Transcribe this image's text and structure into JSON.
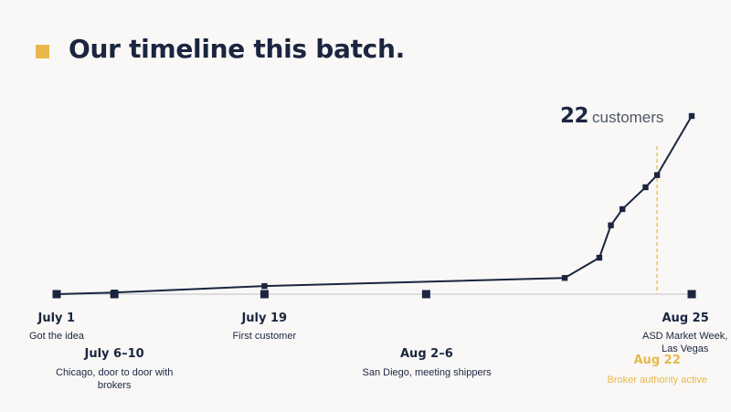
{
  "slide": {
    "title": "Our timeline this batch.",
    "accent_color": "#e8b84c",
    "text_color": "#1b2540"
  },
  "headline": {
    "count": "22",
    "unit": "customers"
  },
  "milestones": [
    {
      "date": "July 1",
      "desc": "Got the idea",
      "day": 1
    },
    {
      "date": "July 6–10",
      "desc": "Chicago, door to door with\nbrokers",
      "day": 6
    },
    {
      "date": "July 19",
      "desc": "First customer",
      "day": 19
    },
    {
      "date": "Aug 2–6",
      "desc": "San Diego, meeting shippers",
      "day": 33
    },
    {
      "date": "Aug 25",
      "desc": "ASD Market Week,\nLas Vegas",
      "day": 56
    },
    {
      "date": "Aug 22",
      "desc": "Broker authority active",
      "day": 53,
      "highlight": true
    }
  ],
  "chart_data": {
    "type": "line",
    "x_axis": "days from July 1",
    "x_range": [
      "July 1",
      "Aug 25"
    ],
    "y_label": "customers",
    "y_range": [
      0,
      22
    ],
    "series": [
      {
        "points": [
          {
            "x": "July 1",
            "y": 0
          },
          {
            "x": "July 6",
            "y": 0.2
          },
          {
            "x": "July 19",
            "y": 1
          },
          {
            "x": "Aug 14",
            "y": 2
          },
          {
            "x": "Aug 17",
            "y": 4.5
          },
          {
            "x": "Aug 18",
            "y": 8.5
          },
          {
            "x": "Aug 19",
            "y": 10.5
          },
          {
            "x": "Aug 21",
            "y": 13.2
          },
          {
            "x": "Aug 22",
            "y": 14.7
          },
          {
            "x": "Aug 25",
            "y": 22
          }
        ]
      }
    ],
    "axis_markers": [
      "July 1",
      "July 6",
      "July 19",
      "Aug 2",
      "Aug 25"
    ],
    "highlight_marker": {
      "x": "Aug 22",
      "style": "dashed",
      "color": "#e8b84c"
    }
  }
}
